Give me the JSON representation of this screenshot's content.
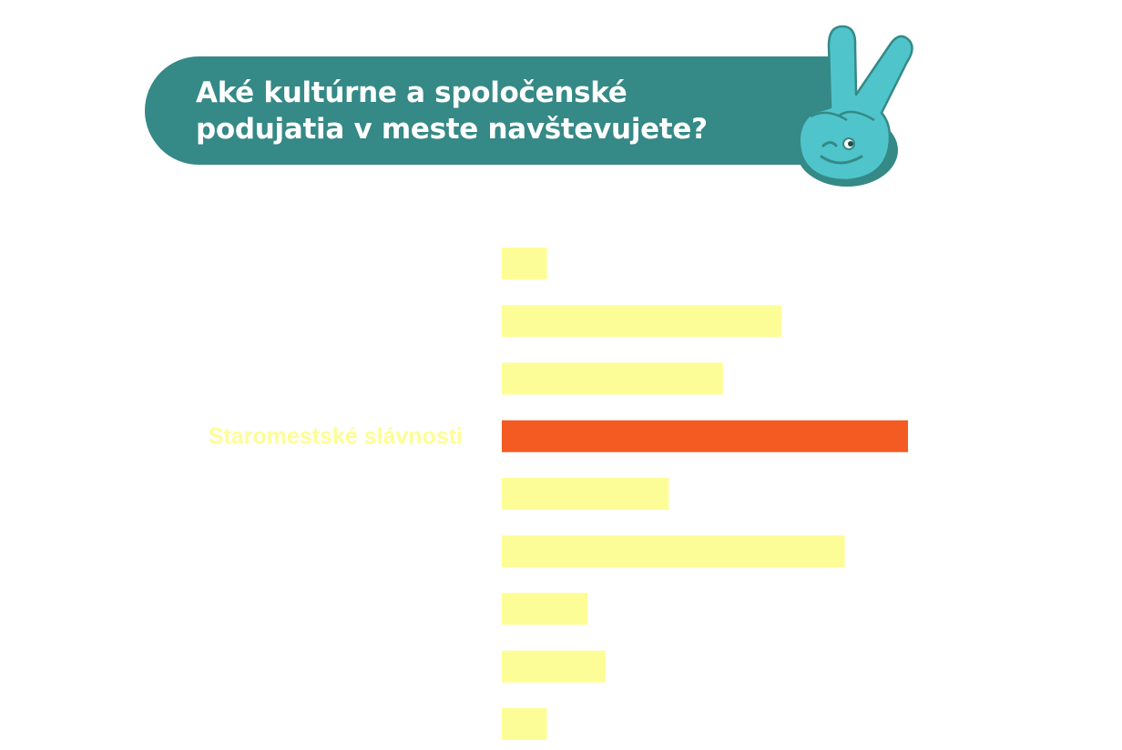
{
  "title_line1": "Aké kultúrne a spoločenské",
  "title_line2": "podujatia v meste navštevujete?",
  "colors": {
    "banner": "#358986",
    "bar": "#fdfd97",
    "highlight": "#f35b23",
    "label": "#fdfd97",
    "mascot": "#4fc4cb"
  },
  "mascot_icon": "peace-hand-icon",
  "chart_data": {
    "type": "bar",
    "orientation": "horizontal",
    "categories": [
      "",
      "",
      "",
      "Staromestské slávnosti",
      "",
      "",
      "",
      "",
      ""
    ],
    "values": [
      5,
      31,
      24.5,
      45,
      18.5,
      38,
      9.5,
      11.5,
      5
    ],
    "highlight_index": 3,
    "xlim": [
      0,
      45
    ],
    "grid": false,
    "legend": "none",
    "title": "Aké kultúrne a spoločenské podujatia v meste navštevujete?",
    "xlabel": "",
    "ylabel": ""
  }
}
